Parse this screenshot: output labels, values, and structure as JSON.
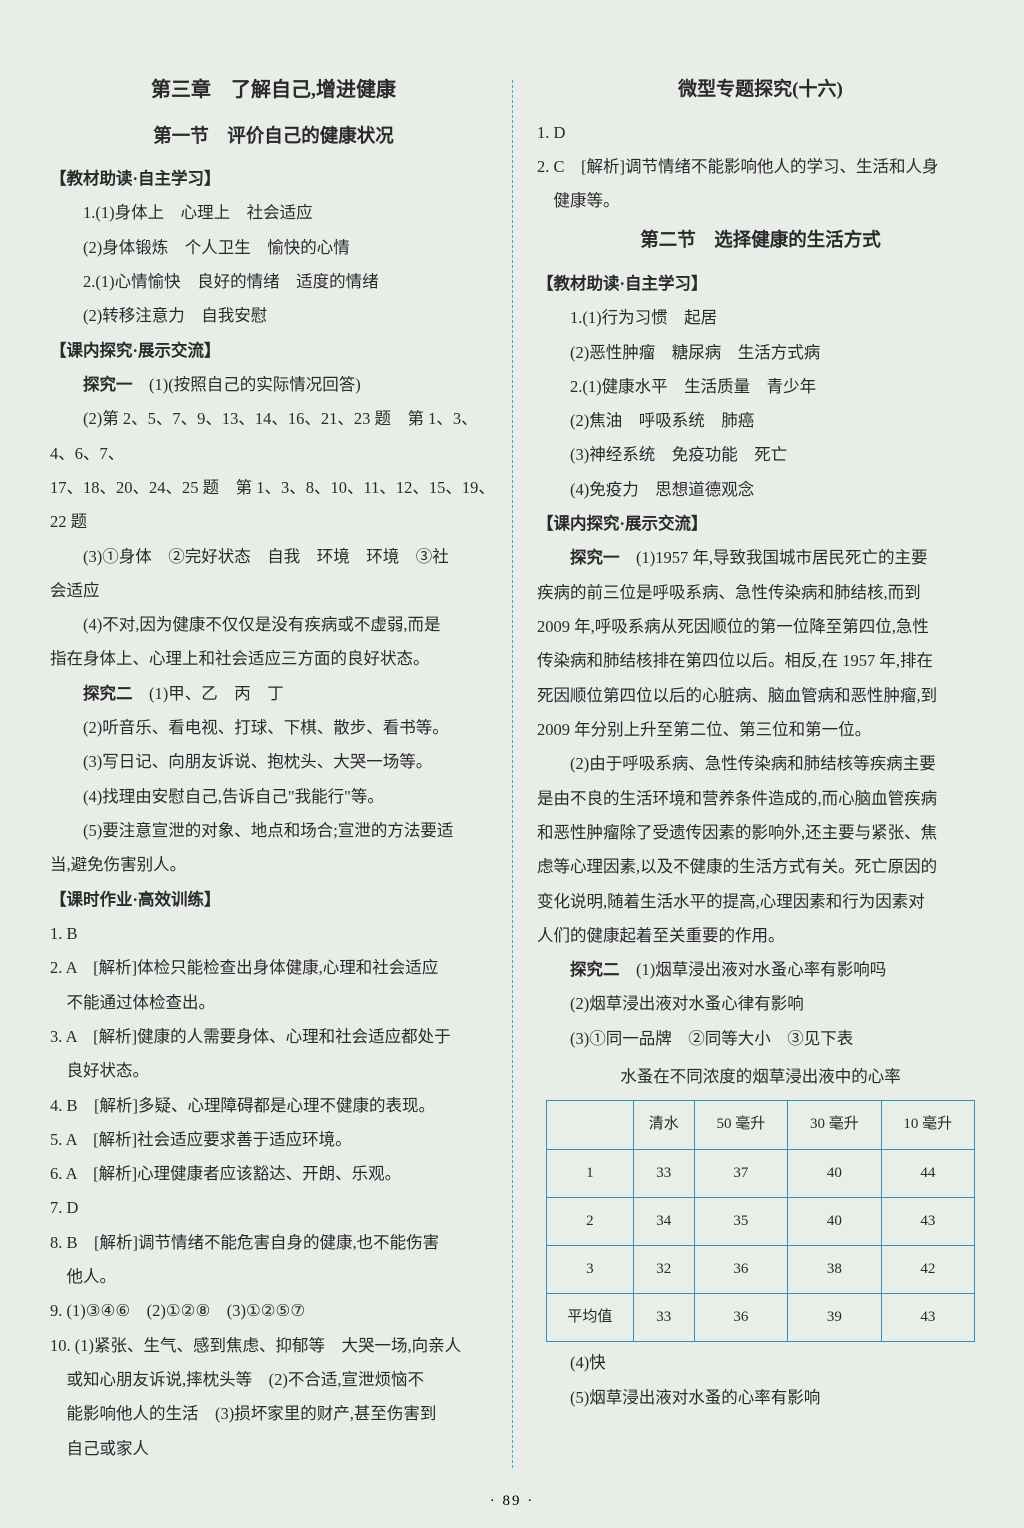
{
  "page_number": "· 89 ·",
  "left": {
    "chapter": "第三章　了解自己,增进健康",
    "section": "第一节　评价自己的健康状况",
    "h1": "【教材助读·自主学习】",
    "p1": "1.(1)身体上　心理上　社会适应",
    "p2": "(2)身体锻炼　个人卫生　愉快的心情",
    "p3": "2.(1)心情愉快　良好的情绪　适度的情绪",
    "p4": "(2)转移注意力　自我安慰",
    "h2": "【课内探究·展示交流】",
    "p5a": "探究一",
    "p5b": "　(1)(按照自己的实际情况回答)",
    "p6": "(2)第 2、5、7、9、13、14、16、21、23 题　第 1、3、4、6、7、",
    "p7": "17、18、20、24、25 题　第 1、3、8、10、11、12、15、19、22 题",
    "p8": "(3)①身体　②完好状态　自我　环境　环境　③社",
    "p9": "会适应",
    "p10": "(4)不对,因为健康不仅仅是没有疾病或不虚弱,而是",
    "p11": "指在身体上、心理上和社会适应三方面的良好状态。",
    "p12a": "探究二",
    "p12b": "　(1)甲、乙　丙　丁",
    "p13": "(2)听音乐、看电视、打球、下棋、散步、看书等。",
    "p14": "(3)写日记、向朋友诉说、抱枕头、大哭一场等。",
    "p15": "(4)找理由安慰自己,告诉自己\"我能行\"等。",
    "p16": "(5)要注意宣泄的对象、地点和场合;宣泄的方法要适",
    "p17": "当,避免伤害别人。",
    "h3": "【课时作业·高效训练】",
    "q1": "1. B",
    "q2": "2. A　[解析]体检只能检查出身体健康,心理和社会适应",
    "q2b": "不能通过体检查出。",
    "q3": "3. A　[解析]健康的人需要身体、心理和社会适应都处于",
    "q3b": "良好状态。",
    "q4": "4. B　[解析]多疑、心理障碍都是心理不健康的表现。",
    "q5": "5. A　[解析]社会适应要求善于适应环境。",
    "q6": "6. A　[解析]心理健康者应该豁达、开朗、乐观。",
    "q7": "7. D",
    "q8": "8. B　[解析]调节情绪不能危害自身的健康,也不能伤害",
    "q8b": "他人。",
    "q9": "9. (1)③④⑥　(2)①②⑧　(3)①②⑤⑦",
    "q10": "10. (1)紧张、生气、感到焦虑、抑郁等　大哭一场,向亲人",
    "q10b": "或知心朋友诉说,摔枕头等　(2)不合适,宣泄烦恼不",
    "q10c": "能影响他人的生活　(3)损坏家里的财产,甚至伤害到",
    "q10d": "自己或家人"
  },
  "right": {
    "subtitle": "微型专题探究(十六)",
    "r1": "1. D",
    "r2": "2. C　[解析]调节情绪不能影响他人的学习、生活和人身",
    "r2b": "健康等。",
    "section2": "第二节　选择健康的生活方式",
    "h1": "【教材助读·自主学习】",
    "p1": "1.(1)行为习惯　起居",
    "p2": "(2)恶性肿瘤　糖尿病　生活方式病",
    "p3": "2.(1)健康水平　生活质量　青少年",
    "p4": "(2)焦油　呼吸系统　肺癌",
    "p5": "(3)神经系统　免疫功能　死亡",
    "p6": "(4)免疫力　思想道德观念",
    "h2": "【课内探究·展示交流】",
    "t1a": "探究一",
    "t1b": "　(1)1957 年,导致我国城市居民死亡的主要",
    "t2": "疾病的前三位是呼吸系病、急性传染病和肺结核,而到",
    "t3": "2009 年,呼吸系病从死因顺位的第一位降至第四位,急性",
    "t4": "传染病和肺结核排在第四位以后。相反,在 1957 年,排在",
    "t5": "死因顺位第四位以后的心脏病、脑血管病和恶性肿瘤,到",
    "t6": "2009 年分别上升至第二位、第三位和第一位。",
    "t7": "(2)由于呼吸系病、急性传染病和肺结核等疾病主要",
    "t8": "是由不良的生活环境和营养条件造成的,而心脑血管疾病",
    "t9": "和恶性肿瘤除了受遗传因素的影响外,还主要与紧张、焦",
    "t10": "虑等心理因素,以及不健康的生活方式有关。死亡原因的",
    "t11": "变化说明,随着生活水平的提高,心理因素和行为因素对",
    "t12": "人们的健康起着至关重要的作用。",
    "u1a": "探究二",
    "u1b": "　(1)烟草浸出液对水蚤心率有影响吗",
    "u2": "(2)烟草浸出液对水蚤心律有影响",
    "u3": "(3)①同一品牌　②同等大小　③见下表",
    "tbl_caption": "水蚤在不同浓度的烟草浸出液中的心率",
    "u4": "(4)快",
    "u5": "(5)烟草浸出液对水蚤的心率有影响"
  },
  "table": {
    "headers": [
      "",
      "清水",
      "50 毫升",
      "30 毫升",
      "10 毫升"
    ],
    "rows": [
      [
        "1",
        "33",
        "37",
        "40",
        "44"
      ],
      [
        "2",
        "34",
        "35",
        "40",
        "43"
      ],
      [
        "3",
        "32",
        "36",
        "38",
        "42"
      ],
      [
        "平均值",
        "33",
        "36",
        "39",
        "43"
      ]
    ],
    "border_color": "#3691ac",
    "bg_color": "#e8efe9"
  }
}
